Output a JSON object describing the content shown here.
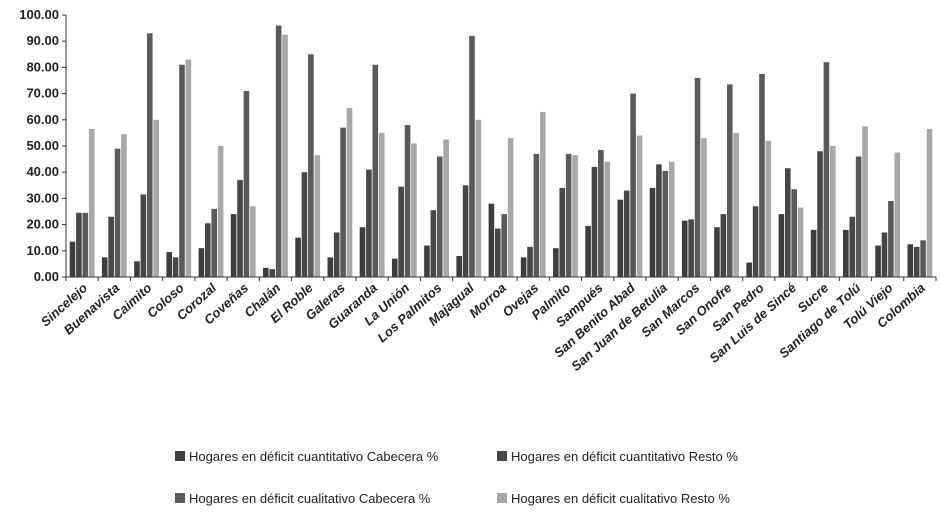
{
  "chart_data": {
    "type": "bar",
    "categories": [
      "Sincelejo",
      "Buenavista",
      "Caimito",
      "Coloso",
      "Corozal",
      "Coveñas",
      "Chalán",
      "El Roble",
      "Galeras",
      "Guaranda",
      "La Unión",
      "Los Palmitos",
      "Majagual",
      "Morroa",
      "Ovejas",
      "Palmito",
      "Sampués",
      "San Benito Abad",
      "San Juan de Betulia",
      "San Marcos",
      "San Onofre",
      "San Pedro",
      "San Luis de Sincé",
      "Sucre",
      "Santiago de Tolú",
      "Tolú Viejo",
      "Colombia"
    ],
    "series": [
      {
        "name": "Hogares en déficit cuantitativo Cabecera %",
        "color": "#3d3d3d",
        "values": [
          13.5,
          7.5,
          6.0,
          9.5,
          11.0,
          24.0,
          3.5,
          15.0,
          7.5,
          19.0,
          7.0,
          12.0,
          8.0,
          28.0,
          7.5,
          11.0,
          19.5,
          29.5,
          34.0,
          21.5,
          19.0,
          5.5,
          24.0,
          18.0,
          18.0,
          12.0,
          12.5
        ]
      },
      {
        "name": "Hogares en déficit cuantitativo Resto %",
        "color": "#474747",
        "values": [
          24.5,
          23.0,
          31.5,
          7.5,
          20.5,
          37.0,
          3.0,
          40.0,
          17.0,
          41.0,
          34.5,
          25.5,
          35.0,
          18.5,
          11.5,
          34.0,
          42.0,
          33.0,
          43.0,
          22.0,
          24.0,
          27.0,
          41.5,
          48.0,
          23.0,
          17.0,
          11.5
        ]
      },
      {
        "name": "Hogares en déficit cualitativo Cabecera %",
        "color": "#5a5a5a",
        "values": [
          24.5,
          49.0,
          93.0,
          81.0,
          26.0,
          71.0,
          96.0,
          85.0,
          57.0,
          81.0,
          58.0,
          46.0,
          92.0,
          24.0,
          47.0,
          47.0,
          48.5,
          70.0,
          40.5,
          76.0,
          73.5,
          77.5,
          33.5,
          82.0,
          46.0,
          29.0,
          14.0
        ]
      },
      {
        "name": "Hogares en déficit cualitativo Resto %",
        "color": "#a8a8a8",
        "values": [
          56.5,
          54.5,
          60.0,
          83.0,
          50.0,
          27.0,
          92.5,
          46.5,
          64.5,
          55.0,
          51.0,
          52.5,
          60.0,
          53.0,
          63.0,
          46.5,
          44.0,
          54.0,
          44.0,
          53.0,
          55.0,
          52.0,
          26.5,
          50.0,
          57.5,
          47.5,
          56.5
        ]
      }
    ],
    "y_ticks": [
      "0.00",
      "10.00",
      "20.00",
      "30.00",
      "40.00",
      "50.00",
      "60.00",
      "70.00",
      "80.00",
      "90.00",
      "100.00"
    ],
    "ylim": [
      0,
      100
    ],
    "grid": false,
    "legend_position": "bottom"
  }
}
